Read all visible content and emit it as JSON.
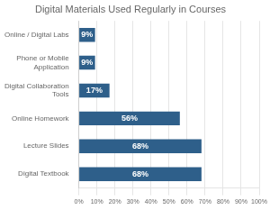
{
  "chart_data": {
    "type": "bar",
    "orientation": "horizontal",
    "title": "Digital Materials Used Regularly in Courses",
    "categories": [
      "Online / Digital Labs",
      "Phone or Mobile\nApplication",
      "Digital Collaboration\nTools",
      "Online Homework",
      "Lecture Slides",
      "Digital Textbook"
    ],
    "values": [
      9,
      9,
      17,
      56,
      68,
      68
    ],
    "value_labels": [
      "9%",
      "9%",
      "17%",
      "56%",
      "68%",
      "68%"
    ],
    "color": "#2e5f8a",
    "xlim": [
      0,
      100
    ],
    "xticks": [
      {
        "value": 0,
        "label": "0%"
      },
      {
        "value": 10,
        "label": "10%"
      },
      {
        "value": 20,
        "label": "20%"
      },
      {
        "value": 30,
        "label": "30%"
      },
      {
        "value": 40,
        "label": "40%"
      },
      {
        "value": 50,
        "label": "50%"
      },
      {
        "value": 60,
        "label": "60%"
      },
      {
        "value": 70,
        "label": "70%"
      },
      {
        "value": 80,
        "label": "80%"
      },
      {
        "value": 90,
        "label": "90%"
      },
      {
        "value": 100,
        "label": "100%"
      }
    ],
    "grid": true,
    "data_labels": true
  }
}
